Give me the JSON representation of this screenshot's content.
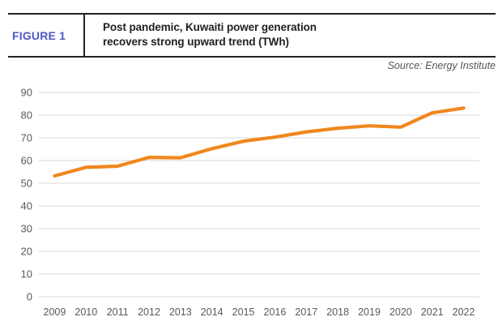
{
  "header": {
    "figure_label": "FIGURE 1",
    "source": "Source: Energy Institute"
  },
  "colors": {
    "line": "#F0871E",
    "figure_label": "#4E59C4",
    "gridline": "#D9D9D9",
    "axis_text": "#595959",
    "title_text": "#221E1F",
    "border": "#262223"
  },
  "chart_data": {
    "type": "line",
    "title": "Post pandemic, Kuwaiti power generation\nrecovers strong upward trend (TWh)",
    "xlabel": "",
    "ylabel": "",
    "categories": [
      "2009",
      "2010",
      "2011",
      "2012",
      "2013",
      "2014",
      "2015",
      "2016",
      "2017",
      "2018",
      "2019",
      "2020",
      "2021",
      "2022"
    ],
    "values": [
      53.2,
      57.0,
      57.5,
      61.4,
      61.2,
      65.2,
      68.5,
      70.3,
      72.6,
      74.2,
      75.3,
      74.7,
      81.0,
      83.1
    ],
    "series_name": "Kuwaiti power generation (TWh)",
    "ylim": [
      0,
      90
    ],
    "y_ticks": [
      0,
      10,
      20,
      30,
      40,
      50,
      60,
      70,
      80,
      90
    ],
    "grid": "horizontal",
    "legend": "none"
  }
}
